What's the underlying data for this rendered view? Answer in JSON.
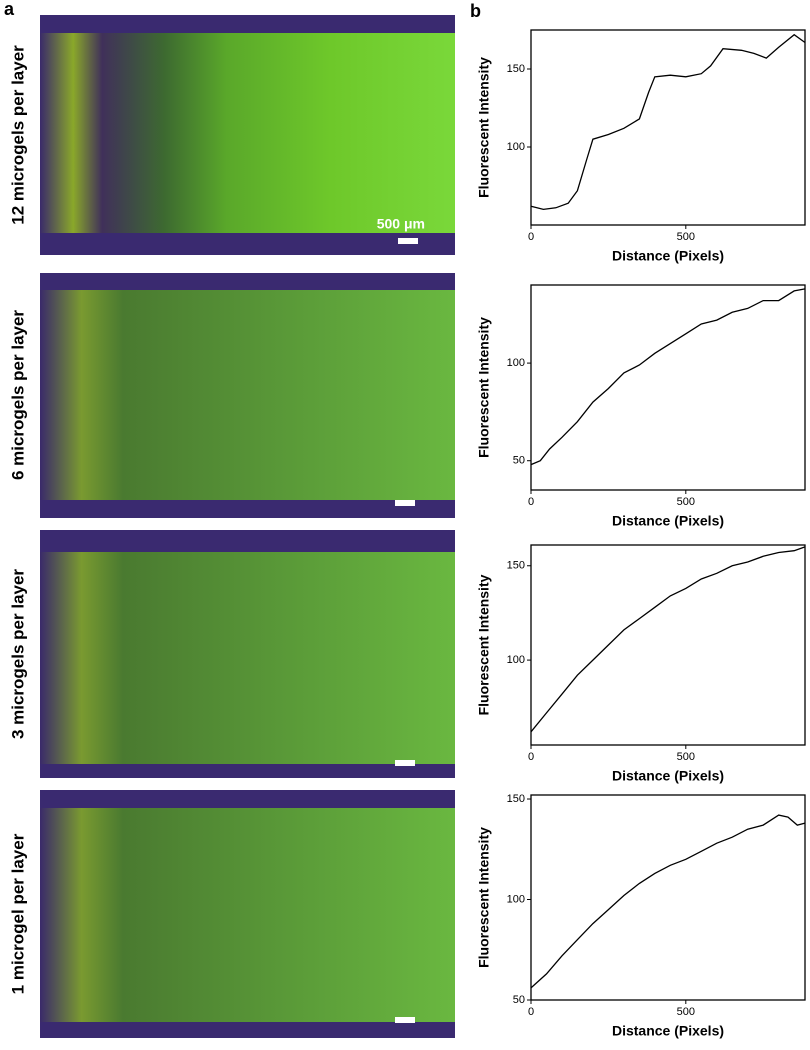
{
  "panel_labels": [
    "a",
    "b"
  ],
  "row_labels": [
    "12 microgels per layer",
    "6 microgels per layer",
    "3 microgels per layer",
    "1 microgel per layer"
  ],
  "scale_bar": "500 μm",
  "chart_data": [
    {
      "type": "line",
      "xlabel": "Distance (Pixels)",
      "ylabel": "Fluorescent Intensity",
      "color": "#000000",
      "x": [
        0,
        40,
        80,
        120,
        150,
        180,
        200,
        250,
        300,
        350,
        380,
        400,
        450,
        500,
        550,
        580,
        620,
        680,
        720,
        760,
        800,
        850,
        885
      ],
      "series": [
        {
          "name": "12 microgels per layer",
          "color": "#000000",
          "values": [
            62,
            60,
            61,
            64,
            72,
            92,
            105,
            108,
            112,
            118,
            135,
            145,
            146,
            145,
            147,
            152,
            163,
            162,
            160,
            157,
            164,
            172,
            167
          ]
        }
      ],
      "xlim": [
        0,
        885
      ],
      "xticks": [
        0,
        500
      ],
      "ylim": [
        50,
        175
      ],
      "yticks": [
        100,
        150
      ]
    },
    {
      "type": "line",
      "xlabel": "Distance (Pixels)",
      "ylabel": "Fluorescent Intensity",
      "color": "#000000",
      "x": [
        0,
        30,
        60,
        100,
        150,
        200,
        250,
        300,
        350,
        400,
        450,
        500,
        550,
        600,
        650,
        700,
        750,
        800,
        850,
        885
      ],
      "series": [
        {
          "name": "6 microgels per layer",
          "color": "#000000",
          "values": [
            48,
            50,
            56,
            62,
            70,
            80,
            87,
            95,
            99,
            105,
            110,
            115,
            120,
            122,
            126,
            128,
            132,
            132,
            137,
            138
          ]
        }
      ],
      "xlim": [
        0,
        885
      ],
      "xticks": [
        0,
        500
      ],
      "ylim": [
        35,
        140
      ],
      "yticks": [
        50,
        100
      ]
    },
    {
      "type": "line",
      "xlabel": "Distance (Pixels)",
      "ylabel": "Fluorescent Intensity",
      "color": "#000000",
      "x": [
        0,
        50,
        100,
        150,
        200,
        250,
        300,
        350,
        400,
        450,
        500,
        550,
        600,
        650,
        700,
        750,
        800,
        850,
        885
      ],
      "series": [
        {
          "name": "3 microgels per layer",
          "color": "#000000",
          "values": [
            62,
            72,
            82,
            92,
            100,
            108,
            116,
            122,
            128,
            134,
            138,
            143,
            146,
            150,
            152,
            155,
            157,
            158,
            160
          ]
        }
      ],
      "xlim": [
        0,
        885
      ],
      "xticks": [
        0,
        500
      ],
      "ylim": [
        55,
        161
      ],
      "yticks": [
        100,
        150
      ]
    },
    {
      "type": "line",
      "xlabel": "Distance (Pixels)",
      "ylabel": "Fluorescent Intensity",
      "color": "#000000",
      "x": [
        0,
        50,
        100,
        150,
        200,
        250,
        300,
        350,
        400,
        450,
        500,
        550,
        600,
        650,
        700,
        750,
        800,
        830,
        860,
        885
      ],
      "series": [
        {
          "name": "1 microgel per layer",
          "color": "#000000",
          "values": [
            56,
            63,
            72,
            80,
            88,
            95,
            102,
            108,
            113,
            117,
            120,
            124,
            128,
            131,
            135,
            137,
            142,
            141,
            137,
            138
          ]
        }
      ],
      "xlim": [
        0,
        885
      ],
      "xticks": [
        0,
        500
      ],
      "ylim": [
        50,
        152
      ],
      "yticks": [
        50,
        100,
        150
      ]
    }
  ]
}
